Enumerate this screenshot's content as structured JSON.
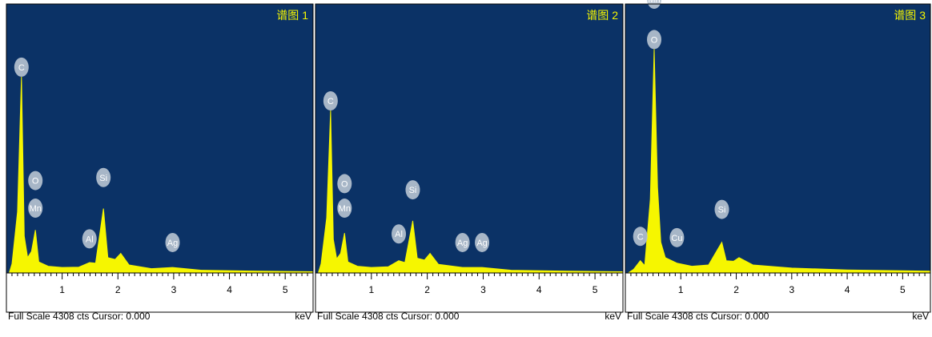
{
  "colors": {
    "plot_bg": "#0b3266",
    "spectrum": "#f6f600",
    "title": "#f6f600",
    "label_bubble": "#b8c4d2",
    "label_text": "#ffffff",
    "axis": "#000000"
  },
  "chart_data": [
    {
      "type": "line",
      "title": "谱图 1",
      "x_unit": "keV",
      "xlim": [
        0,
        5.5
      ],
      "x_ticks": [
        "1",
        "2",
        "3",
        "4",
        "5"
      ],
      "footer": "Full Scale 4308 cts Cursor: 0.000",
      "full_scale_cts": 4308,
      "series": [
        {
          "values": [
            {
              "x": 0.05,
              "y": 0
            },
            {
              "x": 0.1,
              "y": 150
            },
            {
              "x": 0.2,
              "y": 1000
            },
            {
              "x": 0.27,
              "y": 3200
            },
            {
              "x": 0.32,
              "y": 600
            },
            {
              "x": 0.38,
              "y": 250
            },
            {
              "x": 0.45,
              "y": 350
            },
            {
              "x": 0.52,
              "y": 700
            },
            {
              "x": 0.58,
              "y": 180
            },
            {
              "x": 0.75,
              "y": 110
            },
            {
              "x": 1.0,
              "y": 90
            },
            {
              "x": 1.3,
              "y": 95
            },
            {
              "x": 1.49,
              "y": 170
            },
            {
              "x": 1.6,
              "y": 160
            },
            {
              "x": 1.74,
              "y": 1050
            },
            {
              "x": 1.82,
              "y": 250
            },
            {
              "x": 1.95,
              "y": 220
            },
            {
              "x": 2.05,
              "y": 320
            },
            {
              "x": 2.2,
              "y": 130
            },
            {
              "x": 2.6,
              "y": 70
            },
            {
              "x": 2.98,
              "y": 90
            },
            {
              "x": 3.5,
              "y": 45
            },
            {
              "x": 4.5,
              "y": 30
            },
            {
              "x": 5.5,
              "y": 20
            }
          ]
        }
      ],
      "peak_labels": [
        {
          "element": "C",
          "x": 0.27,
          "y": 3200
        },
        {
          "element": "O",
          "x": 0.52,
          "y": 1350
        },
        {
          "element": "Mn",
          "x": 0.52,
          "y": 900
        },
        {
          "element": "Al",
          "x": 1.49,
          "y": 400
        },
        {
          "element": "Si",
          "x": 1.74,
          "y": 1400
        },
        {
          "element": "Ag",
          "x": 2.98,
          "y": 340
        }
      ]
    },
    {
      "type": "line",
      "title": "谱图 2",
      "x_unit": "keV",
      "xlim": [
        0,
        5.5
      ],
      "x_ticks": [
        "1",
        "2",
        "3",
        "4",
        "5"
      ],
      "footer": "Full Scale 4308 cts Cursor: 0.000",
      "full_scale_cts": 4308,
      "series": [
        {
          "values": [
            {
              "x": 0.05,
              "y": 0
            },
            {
              "x": 0.1,
              "y": 150
            },
            {
              "x": 0.2,
              "y": 900
            },
            {
              "x": 0.27,
              "y": 2650
            },
            {
              "x": 0.32,
              "y": 550
            },
            {
              "x": 0.38,
              "y": 230
            },
            {
              "x": 0.45,
              "y": 320
            },
            {
              "x": 0.52,
              "y": 650
            },
            {
              "x": 0.58,
              "y": 180
            },
            {
              "x": 0.75,
              "y": 110
            },
            {
              "x": 1.0,
              "y": 90
            },
            {
              "x": 1.3,
              "y": 100
            },
            {
              "x": 1.49,
              "y": 200
            },
            {
              "x": 1.6,
              "y": 170
            },
            {
              "x": 1.74,
              "y": 850
            },
            {
              "x": 1.82,
              "y": 240
            },
            {
              "x": 1.95,
              "y": 210
            },
            {
              "x": 2.05,
              "y": 320
            },
            {
              "x": 2.2,
              "y": 140
            },
            {
              "x": 2.63,
              "y": 90
            },
            {
              "x": 2.98,
              "y": 90
            },
            {
              "x": 3.5,
              "y": 45
            },
            {
              "x": 4.5,
              "y": 30
            },
            {
              "x": 5.5,
              "y": 20
            }
          ]
        }
      ],
      "peak_labels": [
        {
          "element": "C",
          "x": 0.27,
          "y": 2650
        },
        {
          "element": "O",
          "x": 0.52,
          "y": 1300
        },
        {
          "element": "Mn",
          "x": 0.52,
          "y": 900
        },
        {
          "element": "Al",
          "x": 1.49,
          "y": 480
        },
        {
          "element": "Si",
          "x": 1.74,
          "y": 1200
        },
        {
          "element": "Ag",
          "x": 2.63,
          "y": 340
        },
        {
          "element": "Ag",
          "x": 2.98,
          "y": 340
        }
      ]
    },
    {
      "type": "line",
      "title": "谱图 3",
      "x_unit": "keV",
      "xlim": [
        0,
        5.5
      ],
      "x_ticks": [
        "1",
        "2",
        "3",
        "4",
        "5"
      ],
      "footer": "Full Scale 4308 cts Cursor: 0.000",
      "full_scale_cts": 4308,
      "series": [
        {
          "values": [
            {
              "x": 0.05,
              "y": 0
            },
            {
              "x": 0.15,
              "y": 60
            },
            {
              "x": 0.27,
              "y": 200
            },
            {
              "x": 0.35,
              "y": 120
            },
            {
              "x": 0.45,
              "y": 1200
            },
            {
              "x": 0.52,
              "y": 3650
            },
            {
              "x": 0.58,
              "y": 1400
            },
            {
              "x": 0.64,
              "y": 500
            },
            {
              "x": 0.72,
              "y": 250
            },
            {
              "x": 0.93,
              "y": 160
            },
            {
              "x": 1.2,
              "y": 110
            },
            {
              "x": 1.5,
              "y": 130
            },
            {
              "x": 1.74,
              "y": 500
            },
            {
              "x": 1.82,
              "y": 200
            },
            {
              "x": 1.95,
              "y": 190
            },
            {
              "x": 2.05,
              "y": 250
            },
            {
              "x": 2.3,
              "y": 130
            },
            {
              "x": 3.0,
              "y": 80
            },
            {
              "x": 4.0,
              "y": 50
            },
            {
              "x": 5.0,
              "y": 35
            },
            {
              "x": 5.5,
              "y": 30
            }
          ]
        }
      ],
      "peak_labels": [
        {
          "element": "Mn",
          "x": 0.52,
          "y": 4308
        },
        {
          "element": "O",
          "x": 0.52,
          "y": 3650
        },
        {
          "element": "C",
          "x": 0.27,
          "y": 440
        },
        {
          "element": "Cu",
          "x": 0.93,
          "y": 420
        },
        {
          "element": "Si",
          "x": 1.74,
          "y": 880
        }
      ]
    }
  ]
}
